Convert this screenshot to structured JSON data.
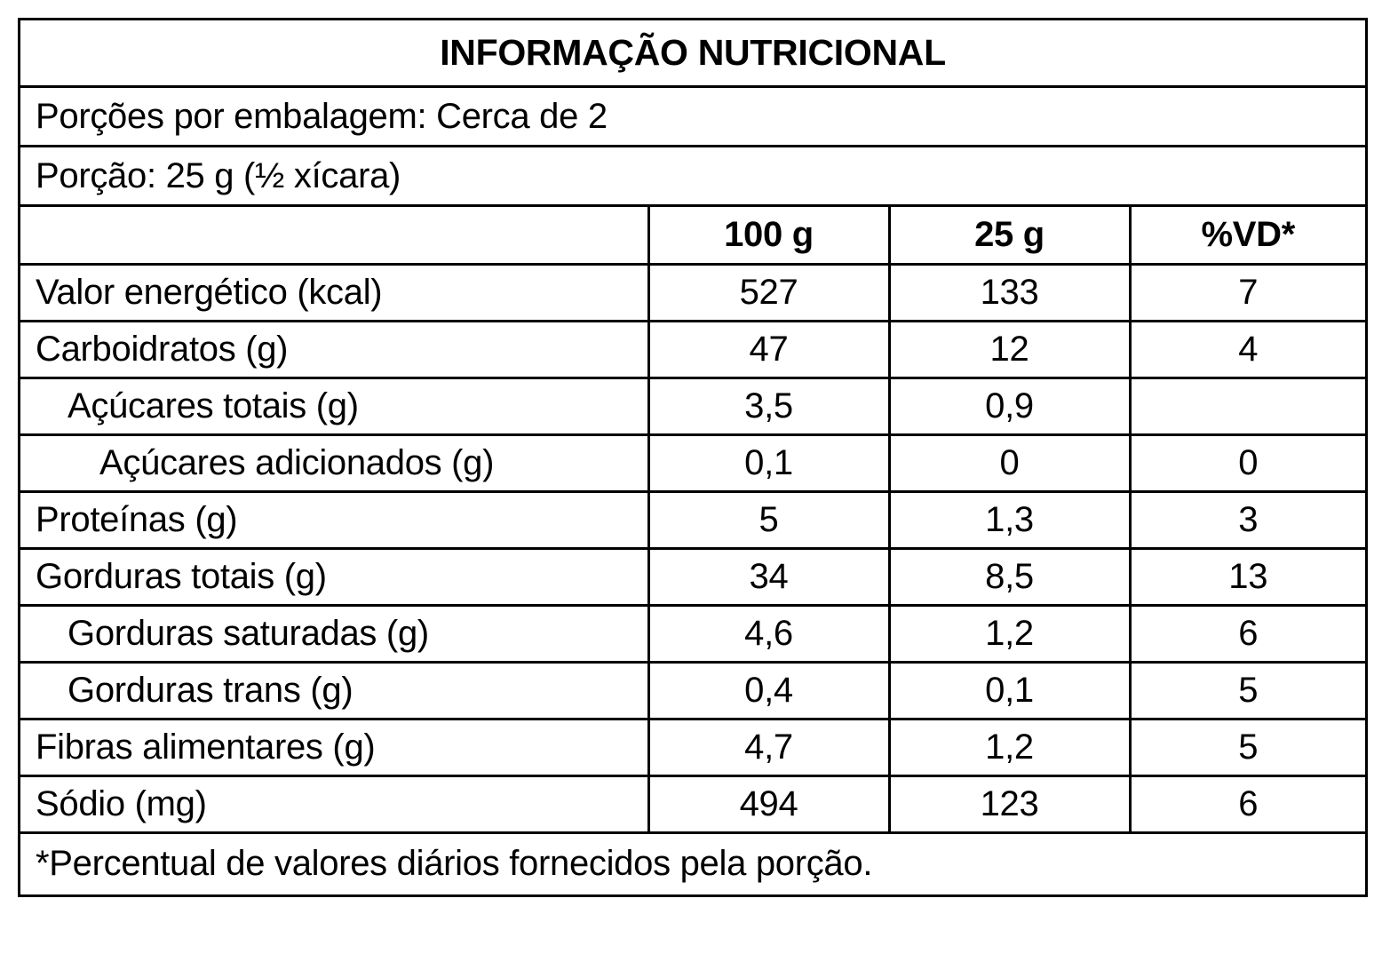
{
  "title": "INFORMAÇÃO NUTRICIONAL",
  "servings_per_package": "Porções por embalagem: Cerca de 2",
  "serving_size": "Porção: 25 g (½ xícara)",
  "columns": {
    "per_100g": "100 g",
    "per_serving": "25 g",
    "dv": "%VD*"
  },
  "rows": [
    {
      "name": "Valor energético (kcal)",
      "indent": 0,
      "per_100g": "527",
      "per_serving": "133",
      "dv": "7"
    },
    {
      "name": "Carboidratos (g)",
      "indent": 0,
      "per_100g": "47",
      "per_serving": "12",
      "dv": "4"
    },
    {
      "name": "Açúcares totais (g)",
      "indent": 1,
      "per_100g": "3,5",
      "per_serving": "0,9",
      "dv": ""
    },
    {
      "name": "Açúcares adicionados (g)",
      "indent": 2,
      "per_100g": "0,1",
      "per_serving": "0",
      "dv": "0"
    },
    {
      "name": "Proteínas (g)",
      "indent": 0,
      "per_100g": "5",
      "per_serving": "1,3",
      "dv": "3"
    },
    {
      "name": "Gorduras totais (g)",
      "indent": 0,
      "per_100g": "34",
      "per_serving": "8,5",
      "dv": "13"
    },
    {
      "name": "Gorduras saturadas (g)",
      "indent": 1,
      "per_100g": "4,6",
      "per_serving": "1,2",
      "dv": "6"
    },
    {
      "name": "Gorduras trans (g)",
      "indent": 1,
      "per_100g": "0,4",
      "per_serving": "0,1",
      "dv": "5"
    },
    {
      "name": "Fibras alimentares (g)",
      "indent": 0,
      "per_100g": "4,7",
      "per_serving": "1,2",
      "dv": "5"
    },
    {
      "name": "Sódio (mg)",
      "indent": 0,
      "per_100g": "494",
      "per_serving": "123",
      "dv": "6"
    }
  ],
  "footnote": "*Percentual de valores diários fornecidos pela porção."
}
